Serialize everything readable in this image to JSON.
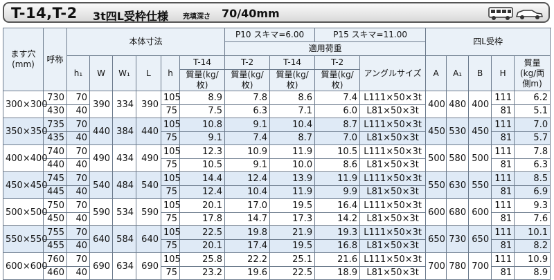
{
  "header": {
    "title": "T-14,T-2",
    "subtitle": "3t四L受枠仕様",
    "depth_label": "充填深さ",
    "depth_value": "70/40mm"
  },
  "table": {
    "headers": {
      "hole": "ます穴\n(mm)",
      "name": "呼称",
      "body": "本体寸法",
      "p10": "P10  スキマ=6.00",
      "p15": "P15  スキマ=11.00",
      "frame": "四L受枠",
      "load": "適用荷重",
      "unit": "質量(kg/枚)",
      "cols": [
        "h₁",
        "W",
        "W₁",
        "L",
        "h",
        "T-14",
        "T-2",
        "T-14",
        "T-2",
        "アングルサイズ",
        "A",
        "A₁",
        "B",
        "H",
        "質量\n(kg/両側m)"
      ]
    },
    "groups": [
      {
        "hole": "300×300",
        "W": "390",
        "W1": "334",
        "L": "390",
        "A": "400",
        "A1": "480",
        "B": "400",
        "rows": [
          [
            "730",
            "70",
            "105",
            "8.9",
            "7.8",
            "8.6",
            "7.4",
            "L111×50×3t",
            "111",
            "6.2"
          ],
          [
            "430",
            "40",
            "75",
            "7.5",
            "6.3",
            "7.1",
            "6.0",
            "L81×50×3t",
            "81",
            "5.1"
          ]
        ]
      },
      {
        "hole": "350×350",
        "W": "440",
        "W1": "384",
        "L": "440",
        "A": "450",
        "A1": "530",
        "B": "450",
        "rows": [
          [
            "735",
            "70",
            "105",
            "10.8",
            "9.1",
            "10.4",
            "8.7",
            "L111×50×3t",
            "111",
            "7.0"
          ],
          [
            "435",
            "40",
            "75",
            "9.1",
            "7.4",
            "8.7",
            "7.0",
            "L81×50×3t",
            "81",
            "5.7"
          ]
        ]
      },
      {
        "hole": "400×400",
        "W": "490",
        "W1": "434",
        "L": "490",
        "A": "500",
        "A1": "580",
        "B": "500",
        "rows": [
          [
            "740",
            "70",
            "105",
            "12.3",
            "10.9",
            "11.9",
            "10.5",
            "L111×50×3t",
            "111",
            "7.8"
          ],
          [
            "440",
            "40",
            "75",
            "10.5",
            "9.1",
            "10.0",
            "8.6",
            "L81×50×3t",
            "81",
            "6.3"
          ]
        ]
      },
      {
        "hole": "450×450",
        "W": "540",
        "W1": "484",
        "L": "540",
        "A": "550",
        "A1": "630",
        "B": "550",
        "rows": [
          [
            "745",
            "70",
            "105",
            "14.4",
            "12.4",
            "13.9",
            "11.9",
            "L111×50×3t",
            "111",
            "8.5"
          ],
          [
            "445",
            "40",
            "75",
            "12.4",
            "10.4",
            "11.9",
            "9.9",
            "L81×50×3t",
            "81",
            "6.9"
          ]
        ]
      },
      {
        "hole": "500×500",
        "W": "590",
        "W1": "534",
        "L": "590",
        "A": "600",
        "A1": "680",
        "B": "600",
        "rows": [
          [
            "750",
            "70",
            "105",
            "20.1",
            "17.0",
            "19.5",
            "16.4",
            "L111×50×3t",
            "111",
            "9.3"
          ],
          [
            "450",
            "40",
            "75",
            "17.8",
            "14.7",
            "17.3",
            "14.2",
            "L81×50×3t",
            "81",
            "7.6"
          ]
        ]
      },
      {
        "hole": "550×550",
        "W": "640",
        "W1": "584",
        "L": "640",
        "A": "650",
        "A1": "730",
        "B": "650",
        "rows": [
          [
            "755",
            "70",
            "105",
            "22.5",
            "19.8",
            "21.9",
            "19.3",
            "L111×50×3t",
            "111",
            "10.1"
          ],
          [
            "455",
            "40",
            "75",
            "20.1",
            "17.4",
            "19.5",
            "16.8",
            "L81×50×3t",
            "81",
            "8.2"
          ]
        ]
      },
      {
        "hole": "600×600",
        "W": "690",
        "W1": "634",
        "L": "690",
        "A": "700",
        "A1": "780",
        "B": "700",
        "rows": [
          [
            "760",
            "70",
            "105",
            "25.8",
            "22.2",
            "25.1",
            "21.6",
            "L111×50×3t",
            "111",
            "10.9"
          ],
          [
            "460",
            "40",
            "75",
            "23.2",
            "19.6",
            "22.5",
            "18.9",
            "L81×50×3t",
            "81",
            "8.9"
          ]
        ]
      }
    ]
  }
}
